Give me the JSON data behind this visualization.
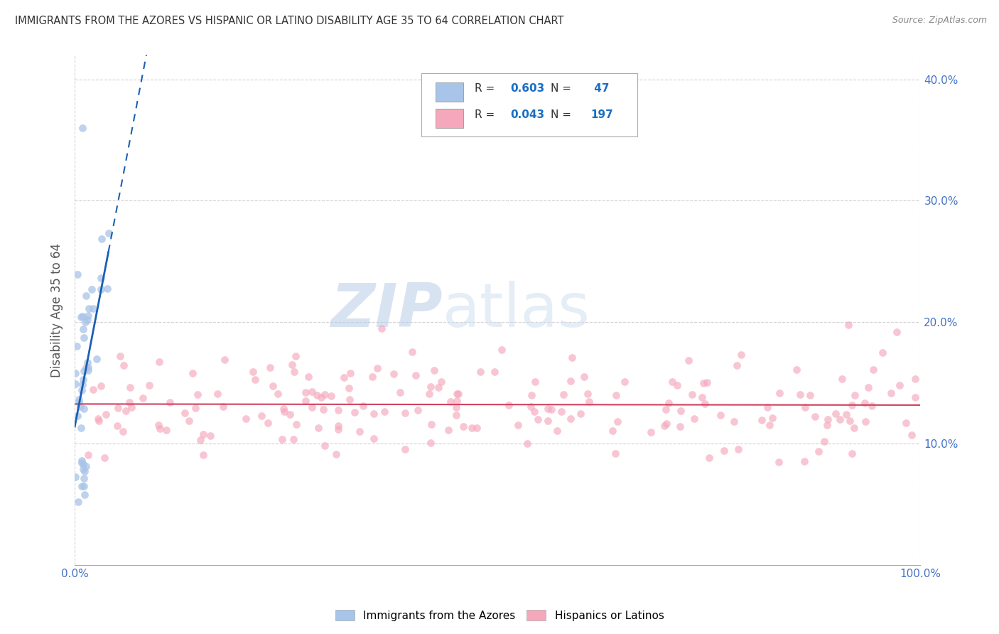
{
  "title": "IMMIGRANTS FROM THE AZORES VS HISPANIC OR LATINO DISABILITY AGE 35 TO 64 CORRELATION CHART",
  "source": "Source: ZipAtlas.com",
  "ylabel": "Disability Age 35 to 64",
  "xlim": [
    0.0,
    1.0
  ],
  "ylim": [
    0.0,
    0.42
  ],
  "ytick_positions": [
    0.1,
    0.2,
    0.3,
    0.4
  ],
  "ytick_labels": [
    "10.0%",
    "20.0%",
    "30.0%",
    "40.0%"
  ],
  "xtick_positions": [
    0.0,
    1.0
  ],
  "xtick_labels": [
    "0.0%",
    "100.0%"
  ],
  "blue_R": 0.603,
  "blue_N": 47,
  "pink_R": 0.043,
  "pink_N": 197,
  "blue_color": "#a8c4e8",
  "pink_color": "#f5a8bc",
  "blue_line_color": "#1a5fb4",
  "pink_line_color": "#d04060",
  "marker_size": 60,
  "legend_label_blue": "Immigrants from the Azores",
  "legend_label_pink": "Hispanics or Latinos",
  "watermark_zip": "ZIP",
  "watermark_atlas": "atlas",
  "background_color": "#ffffff",
  "grid_color": "#cccccc",
  "title_color": "#333333",
  "axis_label_color": "#4472c4",
  "legend_R_label_color": "#333333",
  "legend_value_color": "#1a6ec4"
}
